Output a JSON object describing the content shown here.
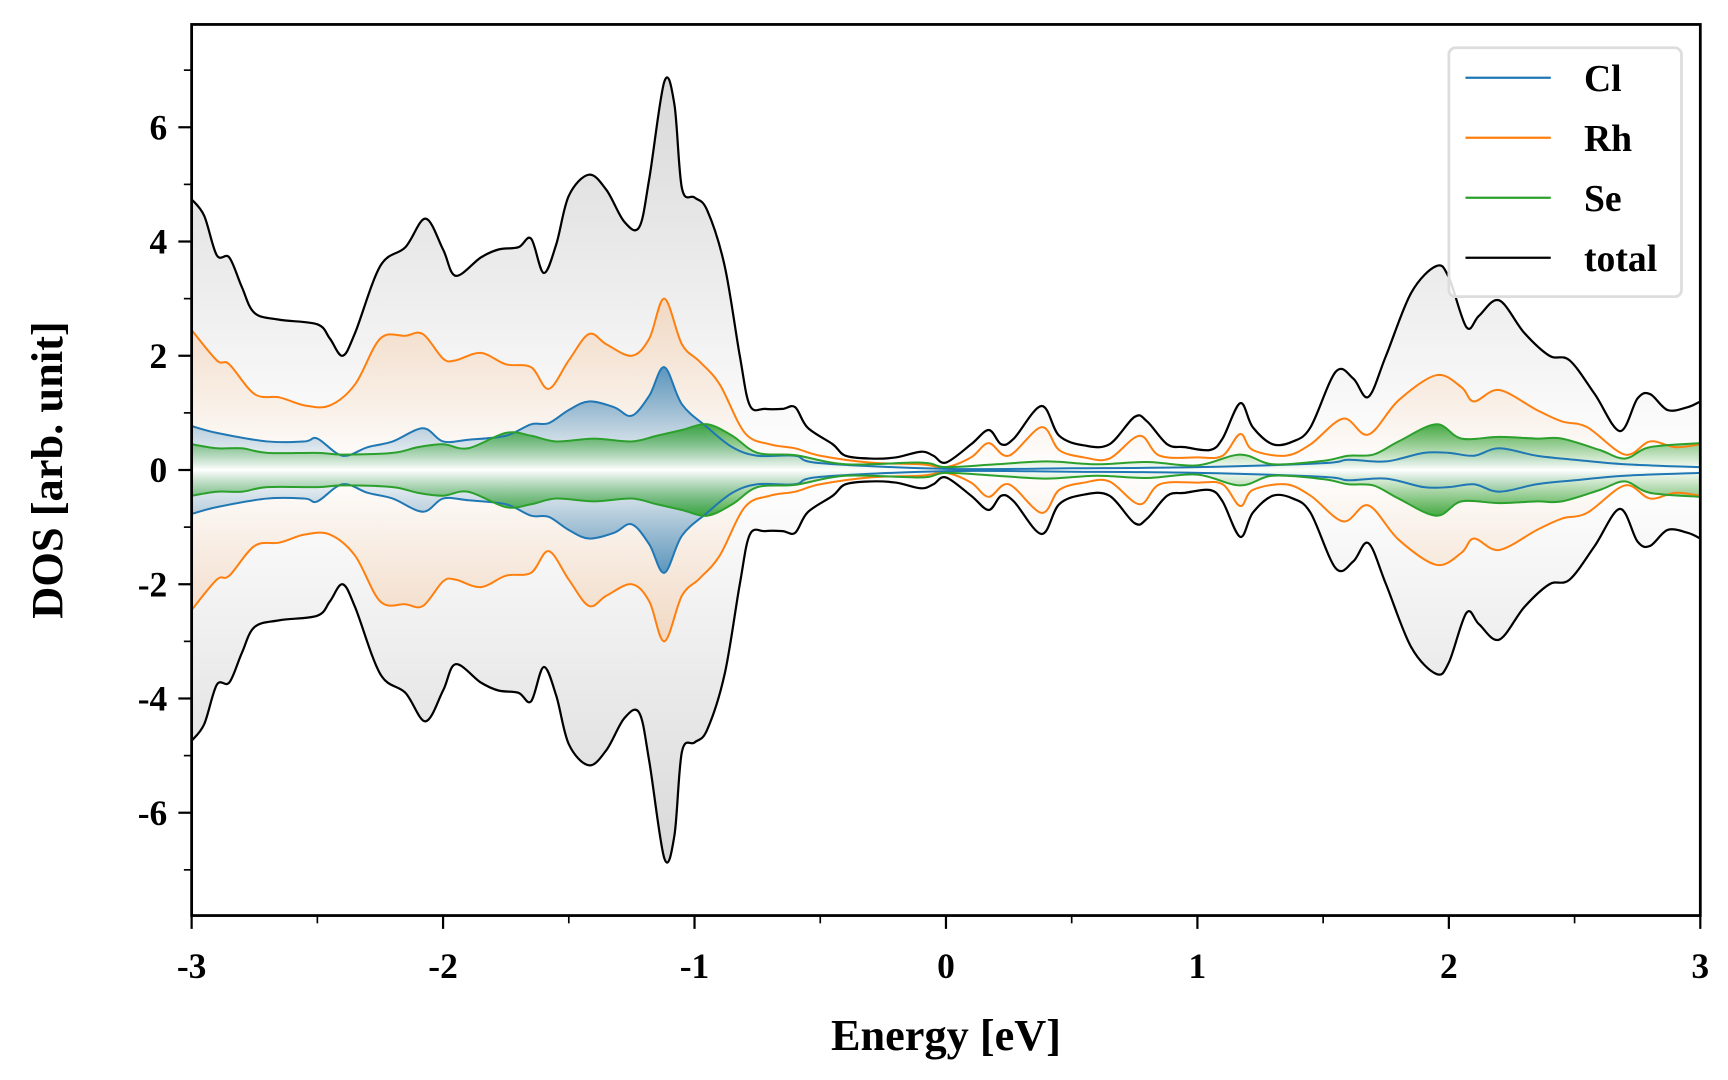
{
  "chart_data": {
    "type": "line",
    "title": "",
    "xlabel": "Energy [eV]",
    "ylabel": "DOS [arb. unit]",
    "xlim": [
      -3,
      3
    ],
    "ylim": [
      -7.8,
      7.8
    ],
    "xticks": [
      -3,
      -2,
      -1,
      0,
      1,
      2,
      3
    ],
    "yticks": [
      -6,
      -4,
      -2,
      0,
      2,
      4,
      6
    ],
    "grid": false,
    "legend_position": "top-right",
    "symmetric_about_zero": true,
    "series": [
      {
        "name": "Cl",
        "color": "#1f77b4",
        "filled": true,
        "x": [
          -3,
          -2.9,
          -2.7,
          -2.55,
          -2.5,
          -2.4,
          -2.3,
          -2.2,
          -2.08,
          -2.0,
          -1.9,
          -1.75,
          -1.65,
          -1.58,
          -1.5,
          -1.42,
          -1.32,
          -1.25,
          -1.18,
          -1.12,
          -1.05,
          -0.95,
          -0.85,
          -0.75,
          -0.6,
          -0.5,
          0,
          0.5,
          1,
          1.5,
          1.6,
          1.75,
          1.9,
          2.0,
          2.1,
          2.2,
          2.35,
          2.5,
          2.7,
          3
        ],
        "y": [
          0.77,
          0.65,
          0.5,
          0.5,
          0.55,
          0.25,
          0.4,
          0.5,
          0.73,
          0.5,
          0.53,
          0.6,
          0.8,
          0.82,
          1.05,
          1.2,
          1.1,
          0.95,
          1.3,
          1.8,
          1.15,
          0.75,
          0.4,
          0.25,
          0.25,
          0.12,
          0.02,
          0.03,
          0.05,
          0.12,
          0.18,
          0.15,
          0.3,
          0.3,
          0.25,
          0.38,
          0.25,
          0.18,
          0.1,
          0.05
        ]
      },
      {
        "name": "Rh",
        "color": "#ff7f0e",
        "filled": true,
        "x": [
          -3,
          -2.9,
          -2.85,
          -2.75,
          -2.65,
          -2.55,
          -2.45,
          -2.35,
          -2.25,
          -2.15,
          -2.08,
          -2.0,
          -1.95,
          -1.85,
          -1.75,
          -1.65,
          -1.58,
          -1.5,
          -1.42,
          -1.35,
          -1.25,
          -1.18,
          -1.12,
          -1.05,
          -0.98,
          -0.9,
          -0.8,
          -0.7,
          -0.6,
          -0.5,
          -0.3,
          -0.1,
          0,
          0.1,
          0.17,
          0.25,
          0.38,
          0.45,
          0.55,
          0.65,
          0.77,
          0.85,
          1.0,
          1.1,
          1.17,
          1.22,
          1.35,
          1.45,
          1.58,
          1.68,
          1.8,
          1.95,
          2.05,
          2.1,
          2.2,
          2.35,
          2.45,
          2.55,
          2.7,
          2.8,
          2.9,
          3
        ],
        "y": [
          2.45,
          1.92,
          1.85,
          1.33,
          1.27,
          1.13,
          1.13,
          1.5,
          2.3,
          2.35,
          2.38,
          1.95,
          1.92,
          2.05,
          1.85,
          1.8,
          1.42,
          1.92,
          2.38,
          2.2,
          2.0,
          2.3,
          3.0,
          2.2,
          1.9,
          1.5,
          0.65,
          0.45,
          0.38,
          0.25,
          0.13,
          0.1,
          0.05,
          0.22,
          0.47,
          0.25,
          0.75,
          0.35,
          0.22,
          0.2,
          0.6,
          0.25,
          0.22,
          0.25,
          0.63,
          0.35,
          0.25,
          0.45,
          0.9,
          0.62,
          1.22,
          1.66,
          1.45,
          1.2,
          1.4,
          1.05,
          0.85,
          0.75,
          0.27,
          0.5,
          0.4,
          0.45
        ]
      },
      {
        "name": "Se",
        "color": "#2ca02c",
        "filled": true,
        "x": [
          -3,
          -2.9,
          -2.8,
          -2.7,
          -2.5,
          -2.4,
          -2.2,
          -2.1,
          -2.0,
          -1.9,
          -1.75,
          -1.65,
          -1.55,
          -1.4,
          -1.25,
          -1.15,
          -1.05,
          -0.95,
          -0.85,
          -0.75,
          -0.6,
          -0.4,
          -0.1,
          0,
          0.2,
          0.4,
          0.6,
          0.8,
          1.0,
          1.17,
          1.3,
          1.5,
          1.6,
          1.7,
          1.8,
          1.95,
          2.05,
          2.2,
          2.35,
          2.45,
          2.6,
          2.7,
          2.8,
          3
        ],
        "y": [
          0.45,
          0.38,
          0.38,
          0.3,
          0.3,
          0.27,
          0.3,
          0.4,
          0.45,
          0.38,
          0.65,
          0.6,
          0.5,
          0.55,
          0.5,
          0.6,
          0.7,
          0.8,
          0.6,
          0.3,
          0.26,
          0.1,
          0.13,
          0.05,
          0.1,
          0.15,
          0.1,
          0.14,
          0.08,
          0.27,
          0.1,
          0.16,
          0.25,
          0.27,
          0.5,
          0.8,
          0.55,
          0.58,
          0.55,
          0.55,
          0.35,
          0.2,
          0.4,
          0.47
        ]
      },
      {
        "name": "total",
        "color": "#000000",
        "filled": true,
        "x": [
          -3,
          -2.95,
          -2.9,
          -2.85,
          -2.8,
          -2.75,
          -2.65,
          -2.5,
          -2.45,
          -2.4,
          -2.35,
          -2.25,
          -2.15,
          -2.07,
          -2.0,
          -1.95,
          -1.85,
          -1.78,
          -1.7,
          -1.65,
          -1.6,
          -1.55,
          -1.5,
          -1.42,
          -1.35,
          -1.28,
          -1.22,
          -1.18,
          -1.12,
          -1.08,
          -1.05,
          -1.0,
          -0.95,
          -0.88,
          -0.82,
          -0.78,
          -0.72,
          -0.65,
          -0.6,
          -0.55,
          -0.45,
          -0.4,
          -0.3,
          -0.2,
          -0.1,
          -0.05,
          0,
          0.1,
          0.17,
          0.22,
          0.27,
          0.38,
          0.45,
          0.55,
          0.65,
          0.75,
          0.8,
          0.88,
          0.95,
          1.05,
          1.1,
          1.17,
          1.22,
          1.3,
          1.38,
          1.45,
          1.55,
          1.62,
          1.68,
          1.75,
          1.85,
          1.95,
          2.0,
          2.07,
          2.12,
          2.2,
          2.3,
          2.4,
          2.48,
          2.58,
          2.68,
          2.75,
          2.8,
          2.87,
          2.95,
          3
        ],
        "y": [
          4.74,
          4.45,
          3.76,
          3.72,
          3.2,
          2.75,
          2.63,
          2.55,
          2.3,
          2.0,
          2.4,
          3.57,
          3.9,
          4.4,
          3.86,
          3.4,
          3.72,
          3.86,
          3.9,
          4.05,
          3.45,
          3.95,
          4.8,
          5.17,
          4.9,
          4.35,
          4.25,
          5.1,
          6.8,
          6.4,
          4.93,
          4.77,
          4.55,
          3.57,
          2.0,
          1.13,
          1.07,
          1.07,
          1.1,
          0.74,
          0.45,
          0.25,
          0.2,
          0.22,
          0.32,
          0.25,
          0.13,
          0.45,
          0.7,
          0.45,
          0.55,
          1.12,
          0.6,
          0.43,
          0.45,
          0.93,
          0.85,
          0.45,
          0.4,
          0.35,
          0.55,
          1.17,
          0.75,
          0.45,
          0.5,
          0.75,
          1.72,
          1.6,
          1.28,
          2.0,
          3.1,
          3.57,
          3.37,
          2.5,
          2.7,
          2.97,
          2.4,
          2.0,
          1.92,
          1.33,
          0.68,
          1.25,
          1.33,
          1.05,
          1.1,
          1.2
        ]
      }
    ]
  }
}
